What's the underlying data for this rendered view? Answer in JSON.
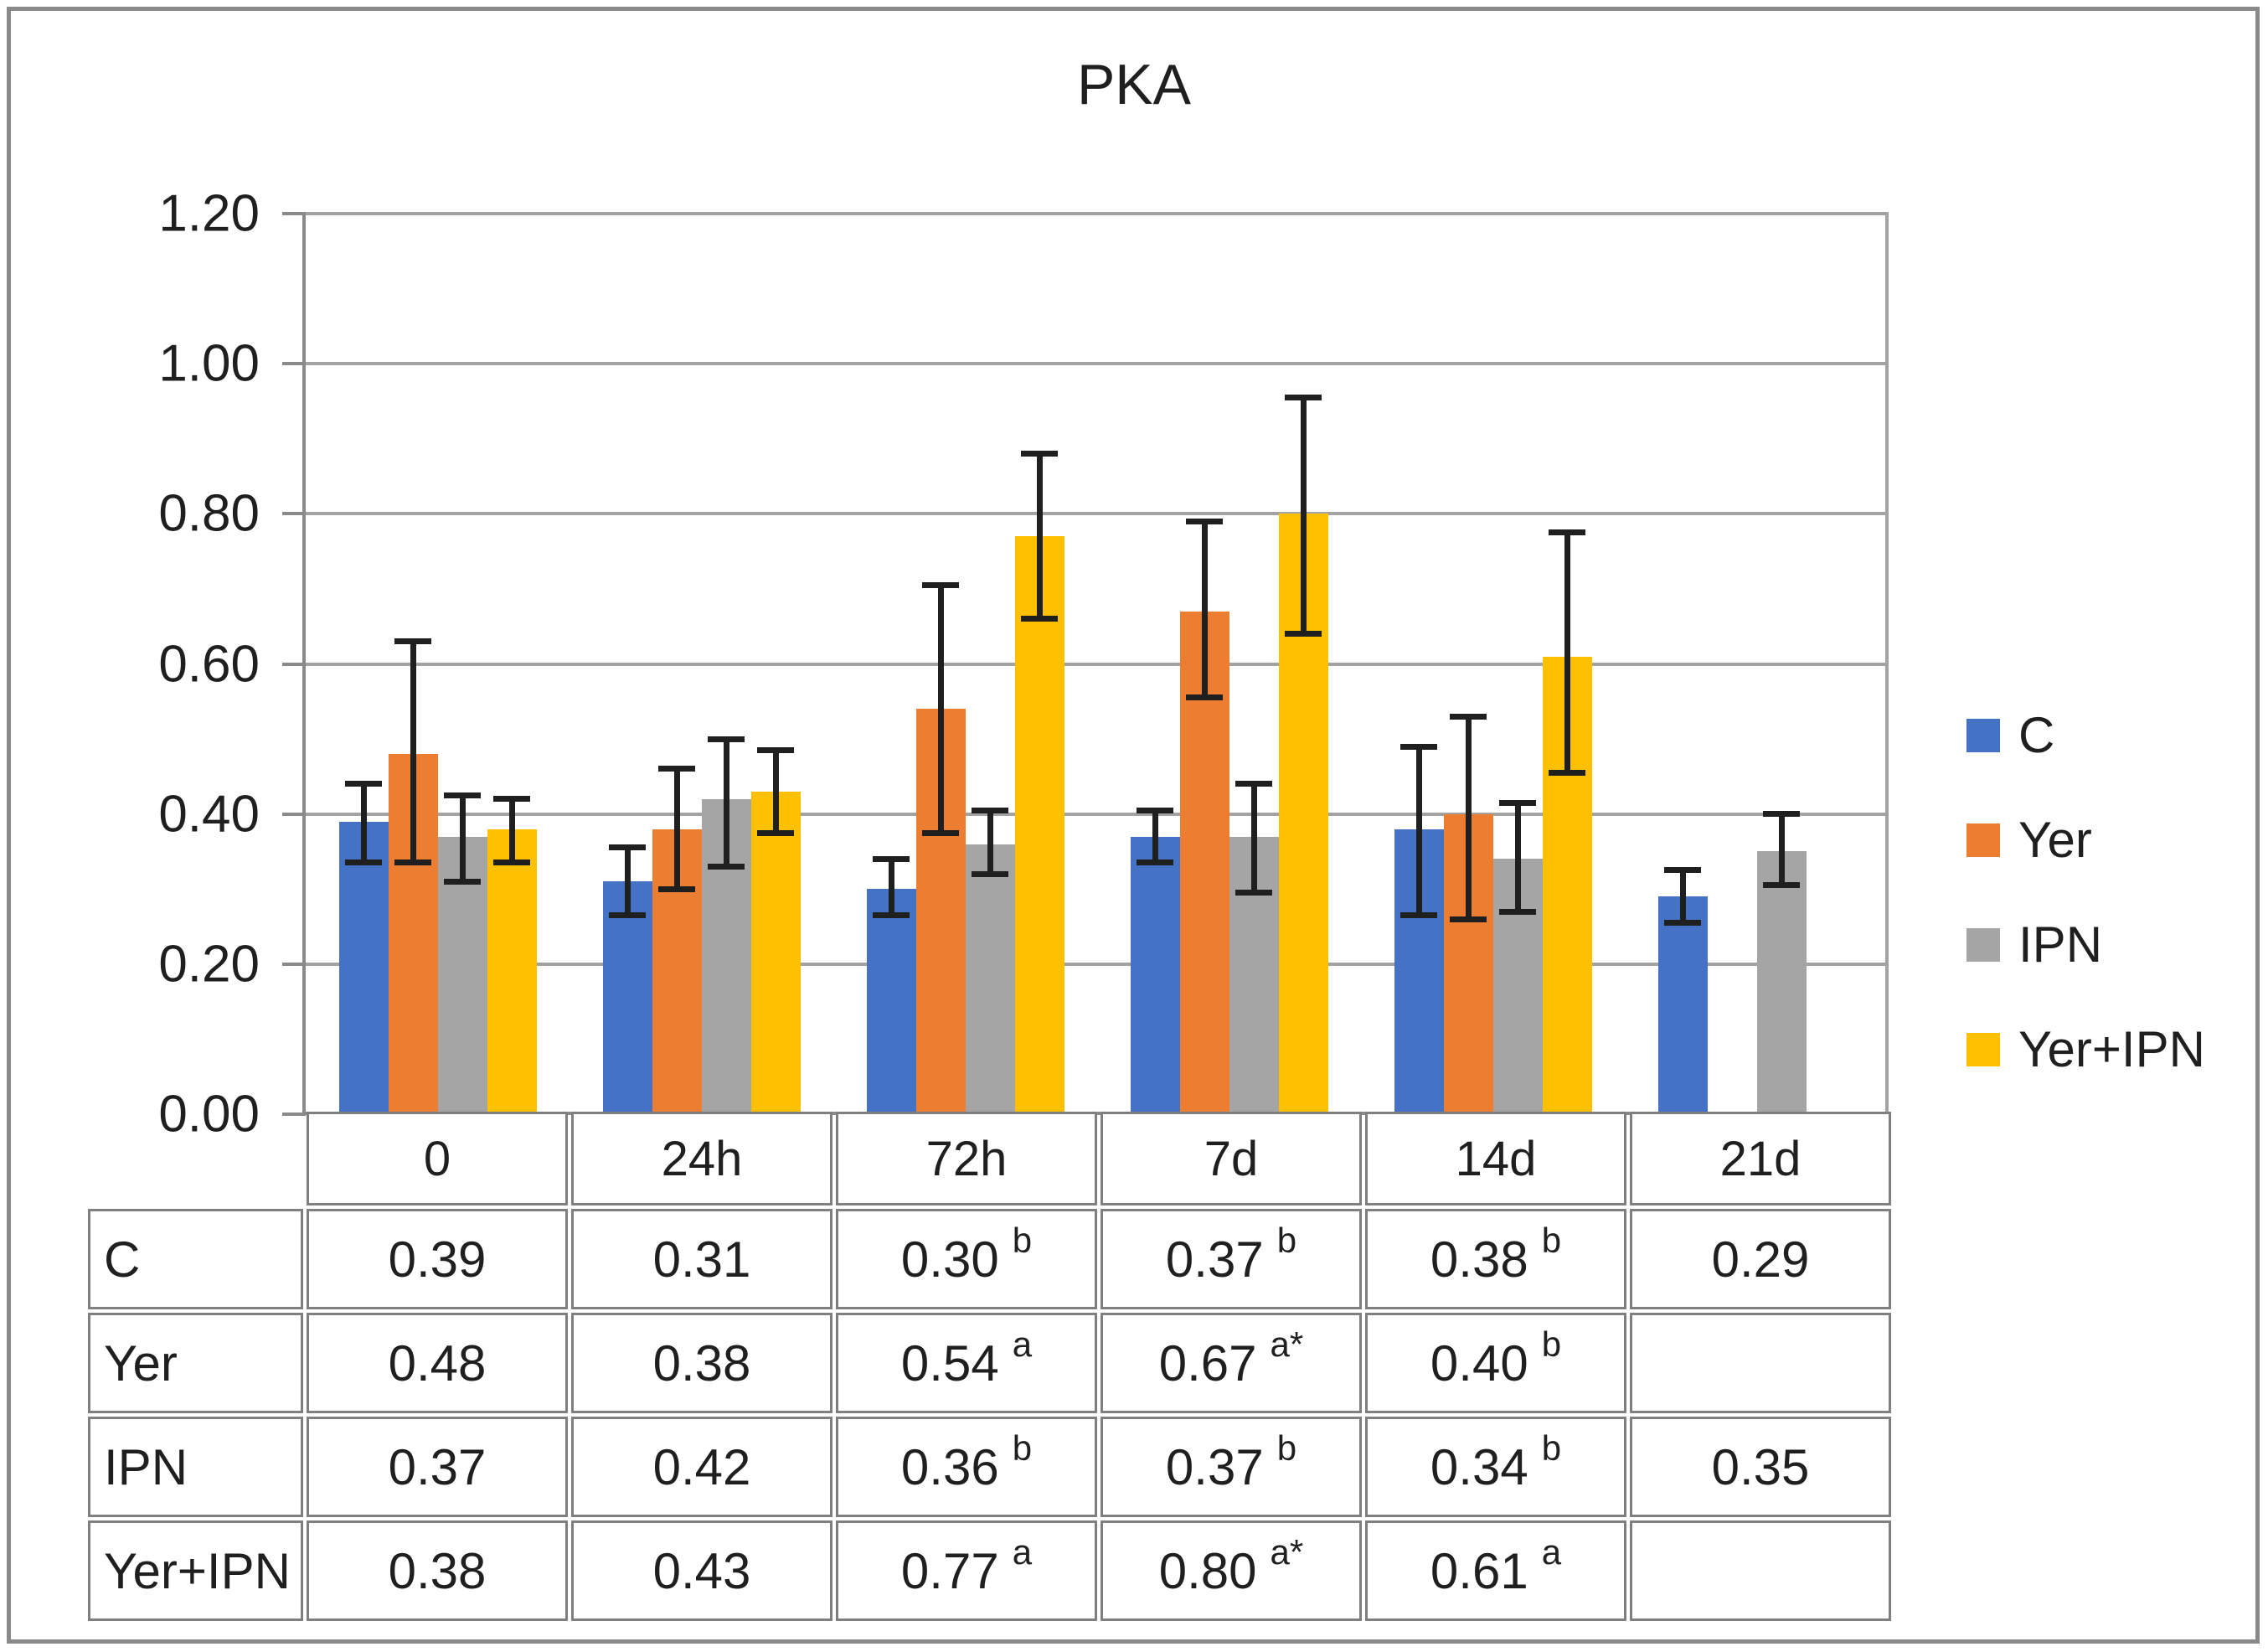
{
  "title": "PKA",
  "colors": {
    "c_series": "#4472C4",
    "yer_series": "#ED7D31",
    "ipn_series": "#A5A5A5",
    "yeripn_series": "#FFC000",
    "gridline": "#A3A3A3",
    "axis": "#8A8A8A",
    "table_border": "#7F7F7F",
    "error_bar": "#1F1F1F"
  },
  "y_axis": {
    "labels": [
      "1.20",
      "1.00",
      "0.80",
      "0.60",
      "0.40",
      "0.20",
      "0.00"
    ],
    "min": 0,
    "max": 1.2,
    "step": 0.2
  },
  "legend": [
    {
      "label": "C",
      "color": "#4472C4"
    },
    {
      "label": "Yer",
      "color": "#ED7D31"
    },
    {
      "label": "IPN",
      "color": "#A5A5A5"
    },
    {
      "label": "Yer+IPN",
      "color": "#FFC000"
    }
  ],
  "chart_data": {
    "type": "bar",
    "title": "PKA",
    "categories": [
      "0",
      "24h",
      "72h",
      "7d",
      "14d",
      "21d"
    ],
    "series": [
      {
        "name": "C",
        "color": "#4472C4",
        "values": [
          0.39,
          0.31,
          0.3,
          0.37,
          0.38,
          0.29
        ],
        "err_plus": [
          0.05,
          0.045,
          0.04,
          0.035,
          0.11,
          0.035
        ],
        "err_minus": [
          0.055,
          0.045,
          0.035,
          0.035,
          0.115,
          0.035
        ]
      },
      {
        "name": "Yer",
        "color": "#ED7D31",
        "values": [
          0.48,
          0.38,
          0.54,
          0.67,
          0.4,
          null
        ],
        "err_plus": [
          0.15,
          0.08,
          0.165,
          0.12,
          0.13,
          null
        ],
        "err_minus": [
          0.145,
          0.08,
          0.165,
          0.115,
          0.14,
          null
        ]
      },
      {
        "name": "IPN",
        "color": "#A5A5A5",
        "values": [
          0.37,
          0.42,
          0.36,
          0.37,
          0.34,
          0.35
        ],
        "err_plus": [
          0.055,
          0.08,
          0.045,
          0.07,
          0.075,
          0.05
        ],
        "err_minus": [
          0.06,
          0.09,
          0.04,
          0.075,
          0.07,
          0.045
        ]
      },
      {
        "name": "Yer+IPN",
        "color": "#FFC000",
        "values": [
          0.38,
          0.43,
          0.77,
          0.8,
          0.61,
          null
        ],
        "err_plus": [
          0.04,
          0.055,
          0.11,
          0.155,
          0.165,
          null
        ],
        "err_minus": [
          0.045,
          0.055,
          0.11,
          0.16,
          0.155,
          null
        ]
      }
    ],
    "ylim": [
      0,
      1.2
    ],
    "grid": true,
    "legend_position": "right",
    "xlabel": "",
    "ylabel": ""
  },
  "table": {
    "col_headers": [
      "0",
      "24h",
      "72h",
      "7d",
      "14d",
      "21d"
    ],
    "rows": [
      {
        "label": "C",
        "cells": [
          {
            "v": "0.39",
            "sup": ""
          },
          {
            "v": "0.31",
            "sup": ""
          },
          {
            "v": "0.30",
            "sup": "b"
          },
          {
            "v": "0.37",
            "sup": "b"
          },
          {
            "v": "0.38",
            "sup": "b"
          },
          {
            "v": "0.29",
            "sup": ""
          }
        ]
      },
      {
        "label": "Yer",
        "cells": [
          {
            "v": "0.48",
            "sup": ""
          },
          {
            "v": "0.38",
            "sup": ""
          },
          {
            "v": "0.54",
            "sup": "a"
          },
          {
            "v": "0.67",
            "sup": "a*"
          },
          {
            "v": "0.40",
            "sup": "b"
          },
          {
            "v": "",
            "sup": ""
          }
        ]
      },
      {
        "label": "IPN",
        "cells": [
          {
            "v": "0.37",
            "sup": ""
          },
          {
            "v": "0.42",
            "sup": ""
          },
          {
            "v": "0.36",
            "sup": "b"
          },
          {
            "v": "0.37",
            "sup": "b"
          },
          {
            "v": "0.34",
            "sup": "b"
          },
          {
            "v": "0.35",
            "sup": ""
          }
        ]
      },
      {
        "label": "Yer+IPN",
        "cells": [
          {
            "v": "0.38",
            "sup": ""
          },
          {
            "v": "0.43",
            "sup": ""
          },
          {
            "v": "0.77",
            "sup": "a"
          },
          {
            "v": "0.80",
            "sup": "a*"
          },
          {
            "v": "0.61",
            "sup": "a"
          },
          {
            "v": "",
            "sup": ""
          }
        ]
      }
    ]
  }
}
